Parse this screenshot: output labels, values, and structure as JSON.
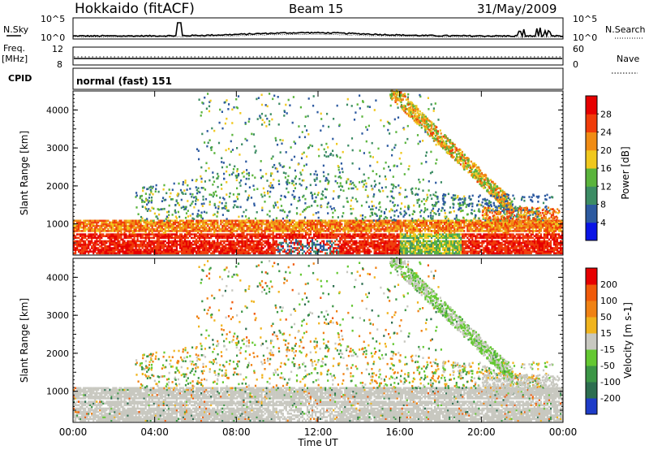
{
  "header": {
    "title": "Hokkaido (fitACF)",
    "beam": "Beam 15",
    "date": "31/May/2009"
  },
  "top_panel": {
    "left_label": "N.Sky",
    "right_label": "N.Search",
    "yticks_left": [
      "10^5",
      "10^0"
    ],
    "yticks_right": [
      "10^5",
      "10^0"
    ]
  },
  "freq_panel": {
    "left_label_line1": "Freq.",
    "left_label_line2": "[MHz]",
    "left_ticks": [
      "12",
      "8"
    ],
    "right_label": "Nave",
    "right_ticks": [
      "60",
      "0"
    ]
  },
  "cpid": {
    "label": "CPID",
    "value": "normal (fast) 151"
  },
  "chart_data": [
    {
      "type": "heatmap",
      "panel": "power",
      "ylabel": "Slant Range [km]",
      "yticks": [
        1000,
        2000,
        3000,
        4000
      ],
      "ylim": [
        180,
        4500
      ],
      "xlim": [
        "00:00",
        "24:00"
      ],
      "colorbar_label": "Power [dB]",
      "colorbar_levels": [
        4,
        8,
        12,
        16,
        20,
        24,
        28
      ],
      "colorbar_colors": [
        "#0a14e6",
        "#2d5aa0",
        "#3c8c64",
        "#5ab43c",
        "#f0c81e",
        "#f08c14",
        "#f03c0a",
        "#e60000"
      ],
      "features": [
        {
          "t": [
            0,
            24
          ],
          "range": [
            180,
            1050
          ],
          "level": 28,
          "note": "strong near-range echoes"
        },
        {
          "t": [
            15.5,
            21
          ],
          "range": [
            1500,
            4500
          ],
          "level": 20,
          "note": "descending oblique band"
        },
        {
          "t": [
            6,
            12
          ],
          "range": [
            1000,
            4200
          ],
          "level": 8,
          "note": "patchy scatter"
        }
      ]
    },
    {
      "type": "heatmap",
      "panel": "velocity",
      "ylabel": "Slant Range [km]",
      "yticks": [
        1000,
        2000,
        3000,
        4000
      ],
      "ylim": [
        180,
        4500
      ],
      "xlim": [
        "00:00",
        "24:00"
      ],
      "colorbar_label": "Velocity [m s-1]",
      "colorbar_levels": [
        200,
        100,
        50,
        15,
        -15,
        -50,
        -100,
        -200
      ],
      "colorbar_colors": [
        "#1e3cc8",
        "#2d6e50",
        "#3c9646",
        "#64c832",
        "#c8c8c0",
        "#f0b41e",
        "#f08214",
        "#f05a0a",
        "#e60000"
      ]
    }
  ],
  "xaxis": {
    "ticks": [
      "00:00",
      "04:00",
      "08:00",
      "12:00",
      "16:00",
      "20:00",
      "00:00"
    ],
    "label": "Time UT"
  }
}
